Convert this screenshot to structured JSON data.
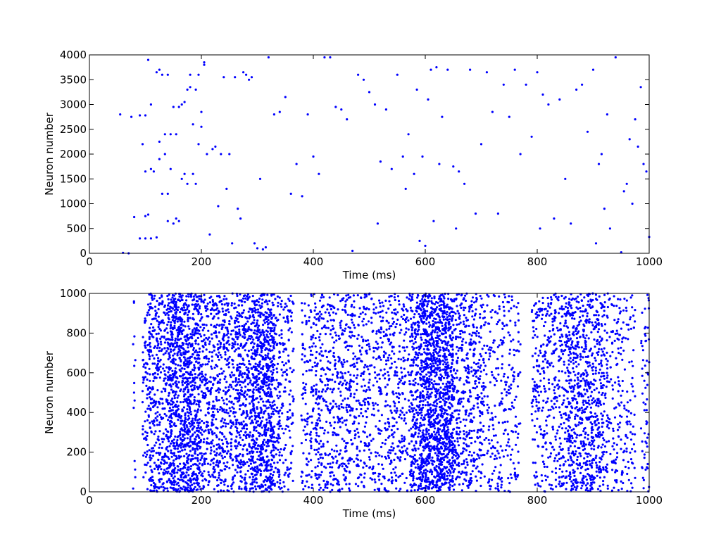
{
  "chart_data": [
    {
      "type": "scatter",
      "title": "",
      "xlabel": "Time (ms)",
      "ylabel": "Neuron number",
      "xlim": [
        0,
        1000
      ],
      "ylim": [
        0,
        4000
      ],
      "xticks": [
        0,
        200,
        400,
        600,
        800,
        1000
      ],
      "yticks": [
        0,
        500,
        1000,
        1500,
        2000,
        2500,
        3000,
        3500,
        4000
      ],
      "grid": false,
      "marker_color": "#0000ff",
      "points": [
        [
          55,
          2800
        ],
        [
          60,
          10
        ],
        [
          70,
          0
        ],
        [
          75,
          2750
        ],
        [
          80,
          730
        ],
        [
          90,
          300
        ],
        [
          90,
          2780
        ],
        [
          95,
          2200
        ],
        [
          100,
          1650
        ],
        [
          100,
          750
        ],
        [
          100,
          2780
        ],
        [
          100,
          300
        ],
        [
          105,
          780
        ],
        [
          105,
          3900
        ],
        [
          110,
          1700
        ],
        [
          110,
          300
        ],
        [
          110,
          3000
        ],
        [
          115,
          1650
        ],
        [
          120,
          3650
        ],
        [
          120,
          320
        ],
        [
          125,
          2250
        ],
        [
          125,
          1900
        ],
        [
          125,
          3700
        ],
        [
          130,
          3600
        ],
        [
          130,
          1200
        ],
        [
          135,
          2400
        ],
        [
          135,
          2000
        ],
        [
          140,
          1200
        ],
        [
          140,
          3600
        ],
        [
          140,
          650
        ],
        [
          145,
          2400
        ],
        [
          145,
          1700
        ],
        [
          150,
          2950
        ],
        [
          150,
          600
        ],
        [
          155,
          2400
        ],
        [
          155,
          700
        ],
        [
          160,
          2950
        ],
        [
          160,
          650
        ],
        [
          165,
          3000
        ],
        [
          165,
          1500
        ],
        [
          170,
          3050
        ],
        [
          170,
          1600
        ],
        [
          175,
          3300
        ],
        [
          175,
          1400
        ],
        [
          180,
          3600
        ],
        [
          180,
          3350
        ],
        [
          185,
          1600
        ],
        [
          185,
          2600
        ],
        [
          190,
          3300
        ],
        [
          190,
          1400
        ],
        [
          195,
          3600
        ],
        [
          195,
          2200
        ],
        [
          200,
          2550
        ],
        [
          200,
          2850
        ],
        [
          205,
          3800
        ],
        [
          205,
          3850
        ],
        [
          210,
          2000
        ],
        [
          215,
          380
        ],
        [
          220,
          2100
        ],
        [
          225,
          2150
        ],
        [
          230,
          950
        ],
        [
          235,
          2000
        ],
        [
          240,
          3550
        ],
        [
          245,
          1300
        ],
        [
          250,
          2000
        ],
        [
          255,
          200
        ],
        [
          260,
          3550
        ],
        [
          265,
          900
        ],
        [
          270,
          700
        ],
        [
          275,
          3650
        ],
        [
          280,
          3600
        ],
        [
          285,
          3500
        ],
        [
          290,
          3550
        ],
        [
          295,
          200
        ],
        [
          300,
          100
        ],
        [
          305,
          1500
        ],
        [
          310,
          80
        ],
        [
          315,
          120
        ],
        [
          320,
          3950
        ],
        [
          330,
          2800
        ],
        [
          340,
          2850
        ],
        [
          350,
          3150
        ],
        [
          360,
          1200
        ],
        [
          370,
          1800
        ],
        [
          380,
          1150
        ],
        [
          390,
          2800
        ],
        [
          400,
          1950
        ],
        [
          410,
          1600
        ],
        [
          420,
          3950
        ],
        [
          430,
          3950
        ],
        [
          440,
          2950
        ],
        [
          450,
          2900
        ],
        [
          460,
          2700
        ],
        [
          470,
          50
        ],
        [
          480,
          3600
        ],
        [
          490,
          3500
        ],
        [
          500,
          3250
        ],
        [
          510,
          3000
        ],
        [
          515,
          600
        ],
        [
          520,
          1850
        ],
        [
          530,
          2900
        ],
        [
          540,
          1700
        ],
        [
          550,
          3600
        ],
        [
          560,
          1950
        ],
        [
          565,
          1300
        ],
        [
          570,
          2400
        ],
        [
          580,
          1600
        ],
        [
          585,
          3300
        ],
        [
          590,
          250
        ],
        [
          595,
          1950
        ],
        [
          600,
          150
        ],
        [
          605,
          3100
        ],
        [
          610,
          3700
        ],
        [
          615,
          650
        ],
        [
          620,
          3750
        ],
        [
          625,
          1800
        ],
        [
          630,
          2750
        ],
        [
          640,
          3700
        ],
        [
          650,
          1750
        ],
        [
          655,
          500
        ],
        [
          660,
          1650
        ],
        [
          670,
          1400
        ],
        [
          680,
          3700
        ],
        [
          690,
          800
        ],
        [
          700,
          2200
        ],
        [
          710,
          3650
        ],
        [
          720,
          2850
        ],
        [
          730,
          800
        ],
        [
          740,
          3400
        ],
        [
          750,
          2750
        ],
        [
          760,
          3700
        ],
        [
          770,
          2000
        ],
        [
          780,
          3400
        ],
        [
          790,
          2350
        ],
        [
          800,
          3650
        ],
        [
          805,
          500
        ],
        [
          810,
          3200
        ],
        [
          820,
          3000
        ],
        [
          830,
          700
        ],
        [
          840,
          3100
        ],
        [
          850,
          1500
        ],
        [
          860,
          600
        ],
        [
          870,
          3300
        ],
        [
          880,
          3400
        ],
        [
          890,
          2450
        ],
        [
          900,
          3700
        ],
        [
          905,
          200
        ],
        [
          910,
          1800
        ],
        [
          915,
          2000
        ],
        [
          920,
          900
        ],
        [
          925,
          2800
        ],
        [
          930,
          500
        ],
        [
          940,
          3950
        ],
        [
          950,
          20
        ],
        [
          955,
          1250
        ],
        [
          960,
          1400
        ],
        [
          965,
          2300
        ],
        [
          970,
          1000
        ],
        [
          975,
          2700
        ],
        [
          980,
          2150
        ],
        [
          985,
          3350
        ],
        [
          990,
          1800
        ],
        [
          995,
          1650
        ],
        [
          1000,
          330
        ]
      ]
    },
    {
      "type": "scatter",
      "title": "",
      "xlabel": "Time (ms)",
      "ylabel": "Neuron number",
      "xlim": [
        0,
        1000
      ],
      "ylim": [
        0,
        1000
      ],
      "xticks": [
        0,
        200,
        400,
        600,
        800,
        1000
      ],
      "yticks": [
        0,
        200,
        400,
        600,
        800,
        1000
      ],
      "grid": false,
      "marker_color": "#0000ff",
      "bursts": [
        {
          "start": 78,
          "end": 82,
          "density": 14
        },
        {
          "start": 95,
          "end": 140,
          "density": 420
        },
        {
          "start": 140,
          "end": 200,
          "density": 1050
        },
        {
          "start": 200,
          "end": 260,
          "density": 560
        },
        {
          "start": 260,
          "end": 290,
          "density": 360
        },
        {
          "start": 290,
          "end": 330,
          "density": 720
        },
        {
          "start": 330,
          "end": 365,
          "density": 220
        },
        {
          "start": 378,
          "end": 395,
          "density": 80
        },
        {
          "start": 395,
          "end": 470,
          "density": 520
        },
        {
          "start": 470,
          "end": 575,
          "density": 620
        },
        {
          "start": 575,
          "end": 590,
          "density": 200
        },
        {
          "start": 590,
          "end": 650,
          "density": 1250
        },
        {
          "start": 650,
          "end": 700,
          "density": 420
        },
        {
          "start": 700,
          "end": 770,
          "density": 300
        },
        {
          "start": 790,
          "end": 850,
          "density": 360
        },
        {
          "start": 850,
          "end": 920,
          "density": 760
        },
        {
          "start": 920,
          "end": 975,
          "density": 240
        },
        {
          "start": 985,
          "end": 1000,
          "density": 60
        }
      ]
    }
  ]
}
